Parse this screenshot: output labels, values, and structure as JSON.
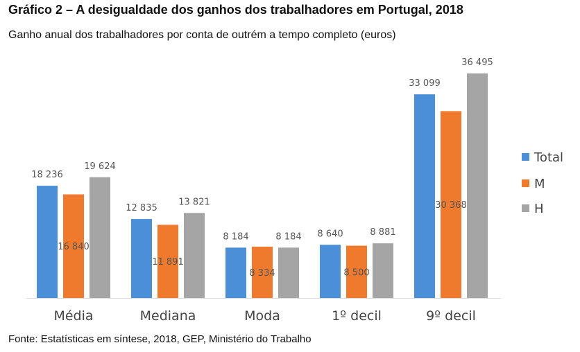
{
  "chart_data": {
    "type": "bar",
    "title": "Gráfico 2 – A desigualdade dos ganhos dos trabalhadores em Portugal, 2018",
    "subtitle": "Ganho anual dos trabalhadores por conta de outrém a tempo completo (euros)",
    "source": "Fonte: Estatísticas em síntese, 2018, GEP, Ministério do Trabalho",
    "categories": [
      "Média",
      "Mediana",
      "Moda",
      "1º decil",
      "9º decil"
    ],
    "series": [
      {
        "name": "Total",
        "color": "#4a8fd8",
        "values": [
          18236,
          12835,
          8184,
          8640,
          33099
        ],
        "labels": [
          "18 236",
          "12 835",
          "8 184",
          "8 640",
          "33 099"
        ]
      },
      {
        "name": "M",
        "color": "#ef7a2e",
        "values": [
          16840,
          11891,
          8334,
          8500,
          30368
        ],
        "labels": [
          "16 840",
          "11 891",
          "8 334",
          "8 500",
          "30 368"
        ]
      },
      {
        "name": "H",
        "color": "#a5a5a5",
        "values": [
          19624,
          13821,
          8184,
          8881,
          36495
        ],
        "labels": [
          "19 624",
          "13 821",
          "8 184",
          "8 881",
          "36 495"
        ]
      }
    ],
    "ylim": [
      0,
      40000
    ],
    "grid": false,
    "legend": "right"
  }
}
